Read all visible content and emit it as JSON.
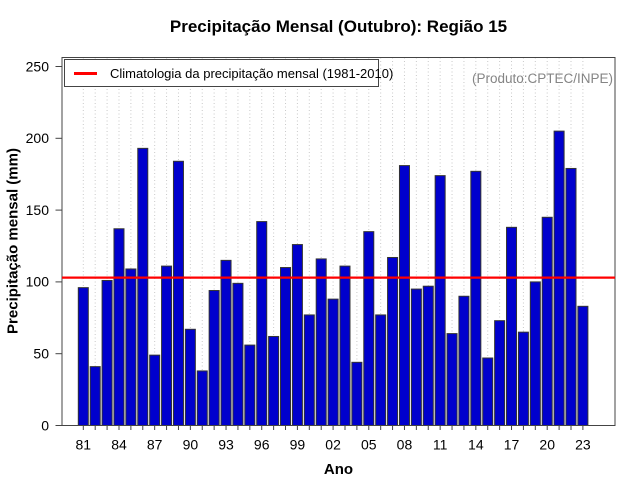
{
  "chart_data": {
    "type": "bar",
    "title": "Precipitação Mensal (Outubro): Região 15",
    "xlabel": "Ano",
    "ylabel": "Precipitação mensal (mm)",
    "ylim": [
      0,
      250
    ],
    "y_ticks": [
      0,
      50,
      100,
      150,
      200,
      250
    ],
    "grid": "vertical-dotted",
    "legend_position": "top-left",
    "legend_label": "Climatologia da precipitação mensal (1981-2010)",
    "watermark": "(Produto:CPTEC/INPE)",
    "climatology_value": 103,
    "years": [
      1981,
      1982,
      1983,
      1984,
      1985,
      1986,
      1987,
      1988,
      1989,
      1990,
      1991,
      1992,
      1993,
      1994,
      1995,
      1996,
      1997,
      1998,
      1999,
      2000,
      2001,
      2002,
      2003,
      2004,
      2005,
      2006,
      2007,
      2008,
      2009,
      2010,
      2011,
      2012,
      2013,
      2014,
      2015,
      2016,
      2017,
      2018,
      2019,
      2020,
      2021,
      2022,
      2023
    ],
    "values": [
      96,
      41,
      101,
      137,
      109,
      193,
      49,
      111,
      184,
      67,
      38,
      94,
      115,
      99,
      56,
      142,
      62,
      110,
      126,
      77,
      116,
      88,
      111,
      44,
      135,
      77,
      117,
      181,
      95,
      97,
      174,
      64,
      90,
      177,
      47,
      73,
      138,
      65,
      100,
      145,
      205,
      179,
      83
    ],
    "x_ticks": [
      {
        "year": 1981,
        "label": "81"
      },
      {
        "year": 1984,
        "label": "84"
      },
      {
        "year": 1987,
        "label": "87"
      },
      {
        "year": 1990,
        "label": "90"
      },
      {
        "year": 1993,
        "label": "93"
      },
      {
        "year": 1996,
        "label": "96"
      },
      {
        "year": 1999,
        "label": "99"
      },
      {
        "year": 2002,
        "label": "02"
      },
      {
        "year": 2005,
        "label": "05"
      },
      {
        "year": 2008,
        "label": "08"
      },
      {
        "year": 2011,
        "label": "11"
      },
      {
        "year": 2014,
        "label": "14"
      },
      {
        "year": 2017,
        "label": "17"
      },
      {
        "year": 2020,
        "label": "20"
      },
      {
        "year": 2023,
        "label": "23"
      }
    ],
    "colors": {
      "bar_fill": "#0000CD",
      "bar_border": "#333333",
      "climatology_line": "#FF0000",
      "grid_line": "#C9C9C9",
      "axis": "#444444",
      "tick_text": "#000000",
      "watermark_text": "#858585"
    }
  }
}
